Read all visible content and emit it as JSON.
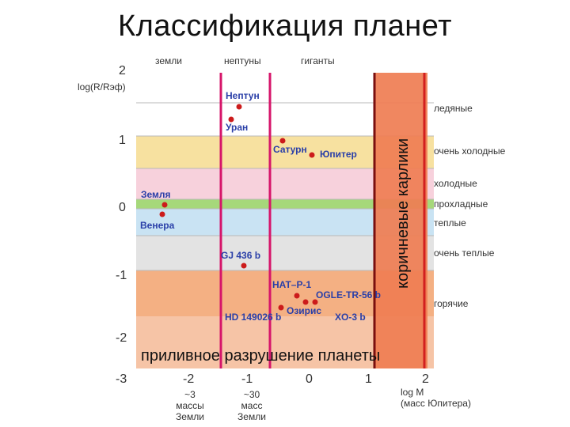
{
  "title": "Классификация планет",
  "top_labels": [
    "земли",
    "нептуны",
    "гиганты"
  ],
  "y_axis_label": "log(R/Rэф)",
  "x_axis_label_line1": "log M",
  "x_axis_label_line2": "(масс Юпитера)",
  "y_ticks": [
    "2",
    "1",
    "0",
    "-1",
    "-2",
    "-3"
  ],
  "x_ticks": [
    "-2",
    "-1",
    "0",
    "1",
    "2"
  ],
  "zones": [
    {
      "label": "ледяные",
      "color": "#ffffff"
    },
    {
      "label": "очень холодные",
      "color": "#f7e1a0"
    },
    {
      "label": "холодные",
      "color": "#f7d1dc"
    },
    {
      "label": "прохладные",
      "color": "#a6d87a"
    },
    {
      "label": "теплые",
      "color": "#c9e3f3"
    },
    {
      "label": "очень теплые",
      "color": "#e3e3e3"
    },
    {
      "label": "горячие",
      "color": "#f4b083"
    },
    {
      "label": "",
      "color": "#f6c4a6"
    }
  ],
  "brown_dwarf_label": "коричневые карлики",
  "tidal_label": "приливное разрушение планеты",
  "planets": [
    {
      "name": "Нептун"
    },
    {
      "name": "Уран"
    },
    {
      "name": "Сатурн"
    },
    {
      "name": "Юпитер"
    },
    {
      "name": "Земля"
    },
    {
      "name": "Венера"
    },
    {
      "name": "GJ 436 b"
    },
    {
      "name": "HAT–P-1"
    },
    {
      "name": "OGLE-TR-56 b"
    },
    {
      "name": "Озирис"
    },
    {
      "name": "HD 149026 b"
    },
    {
      "name": "XO-3 b"
    }
  ],
  "notes": {
    "earth_mass_1": "~3",
    "earth_mass_2": "массы",
    "earth_mass_3": "Земли",
    "earth30_1": "~30",
    "earth30_2": "масс",
    "earth30_3": "Земли"
  },
  "colors": {
    "pink_line": "#d6156a",
    "red_line": "#d21f1f",
    "dark_line": "#7a0f0f",
    "brown_band": "#ef7d52",
    "point": "#cc1b1b"
  }
}
